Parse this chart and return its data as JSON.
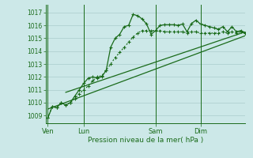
{
  "bg_color": "#cce8e8",
  "grid_color": "#aacccc",
  "line_color": "#1a6b1a",
  "title": "Pression niveau de la mer( hPa )",
  "ylabel_vals": [
    1009,
    1010,
    1011,
    1012,
    1013,
    1014,
    1015,
    1016,
    1017
  ],
  "ylim": [
    1008.4,
    1017.6
  ],
  "day_labels": [
    "Ven",
    "Lun",
    "Sam",
    "Dim"
  ],
  "day_positions": [
    0,
    16,
    48,
    68
  ],
  "xlim": [
    -1,
    88
  ],
  "series1_x": [
    0,
    2,
    4,
    6,
    8,
    10,
    12,
    14,
    16,
    18,
    20,
    22,
    24,
    26,
    28,
    30,
    32,
    34,
    36,
    38,
    40,
    42,
    44,
    46,
    48,
    50,
    52,
    54,
    56,
    58,
    60,
    62,
    64,
    66,
    68,
    70,
    72,
    74,
    76,
    78,
    80,
    82,
    84,
    86,
    88
  ],
  "series1": [
    1008.8,
    1009.7,
    1009.6,
    1010.0,
    1009.8,
    1010.0,
    1010.5,
    1011.0,
    1011.5,
    1011.9,
    1012.0,
    1011.9,
    1012.0,
    1012.5,
    1014.3,
    1015.0,
    1015.3,
    1015.9,
    1016.0,
    1016.85,
    1016.75,
    1016.5,
    1016.1,
    1015.3,
    1015.6,
    1016.0,
    1016.05,
    1016.05,
    1016.05,
    1016.0,
    1016.1,
    1015.5,
    1016.15,
    1016.4,
    1016.1,
    1016.0,
    1015.9,
    1015.8,
    1015.7,
    1015.9,
    1015.5,
    1015.9,
    1015.5,
    1015.6,
    1015.4
  ],
  "series2_x": [
    0,
    2,
    4,
    6,
    8,
    10,
    12,
    14,
    16,
    18,
    20,
    22,
    24,
    26,
    28,
    30,
    32,
    34,
    36,
    38,
    40,
    42,
    44,
    46,
    48,
    50,
    52,
    54,
    56,
    58,
    60,
    62,
    64,
    66,
    68,
    70,
    72,
    74,
    76,
    78,
    80,
    82,
    84,
    86,
    88
  ],
  "series2": [
    1008.8,
    1009.7,
    1009.6,
    1010.0,
    1009.8,
    1010.0,
    1010.3,
    1010.7,
    1011.0,
    1011.3,
    1011.7,
    1012.0,
    1012.1,
    1012.5,
    1013.0,
    1013.5,
    1013.9,
    1014.3,
    1014.7,
    1015.1,
    1015.4,
    1015.6,
    1015.6,
    1015.6,
    1015.6,
    1015.6,
    1015.5,
    1015.5,
    1015.5,
    1015.5,
    1015.5,
    1015.4,
    1015.5,
    1015.5,
    1015.4,
    1015.4,
    1015.4,
    1015.4,
    1015.4,
    1015.5,
    1015.4,
    1015.5,
    1015.4,
    1015.5,
    1015.4
  ],
  "trend1_x": [
    0,
    88
  ],
  "trend1_y": [
    1009.5,
    1015.2
  ],
  "trend2_x": [
    8,
    88
  ],
  "trend2_y": [
    1010.8,
    1015.5
  ]
}
